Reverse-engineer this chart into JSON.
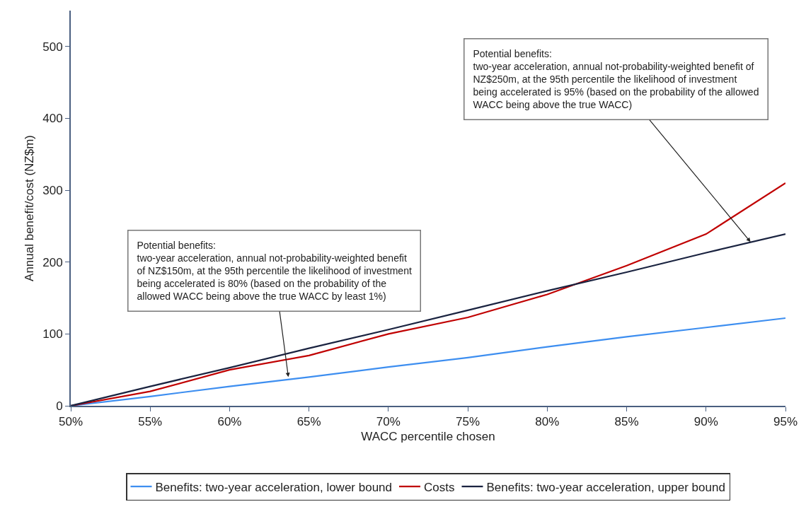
{
  "chart_data": {
    "type": "line",
    "xlabel": "WACC percentile chosen",
    "ylabel": "Annual benefit/cost (NZ$m)",
    "x": [
      50,
      55,
      60,
      65,
      70,
      75,
      80,
      85,
      90,
      95
    ],
    "series": [
      {
        "name": "Benefits: two-year acceleration, lower bound",
        "color": "#3d8ef0",
        "values": [
          0,
          13,
          27,
          40,
          54,
          67,
          82,
          96,
          109,
          122
        ]
      },
      {
        "name": "Costs",
        "color": "#c00000",
        "values": [
          0,
          20,
          50,
          70,
          100,
          123,
          155,
          195,
          239,
          310
        ]
      },
      {
        "name": "Benefits: two-year acceleration, upper bound",
        "color": "#1a2340",
        "values": [
          0,
          27,
          53,
          80,
          106,
          133,
          160,
          186,
          213,
          239
        ]
      }
    ],
    "xlim": [
      50,
      95
    ],
    "ylim": [
      0,
      550
    ],
    "xticks": [
      {
        "value": 50,
        "label": "50%"
      },
      {
        "value": 55,
        "label": "55%"
      },
      {
        "value": 60,
        "label": "60%"
      },
      {
        "value": 65,
        "label": "65%"
      },
      {
        "value": 70,
        "label": "70%"
      },
      {
        "value": 75,
        "label": "75%"
      },
      {
        "value": 80,
        "label": "80%"
      },
      {
        "value": 85,
        "label": "85%"
      },
      {
        "value": 90,
        "label": "90%"
      },
      {
        "value": 95,
        "label": "95%"
      }
    ],
    "yticks": [
      0,
      100,
      200,
      300,
      400,
      500
    ],
    "annotations": [
      {
        "text": "Potential benefits:\ntwo-year acceleration, annual not-probability-weighted benefit\nof NZ$150m, at the 95th percentile the likelihood of investment\nbeing accelerated is 80% (based on the probability of the\nallowed WACC being above the true WACC by least 1%)",
        "x": 63.7,
        "y": 40
      },
      {
        "text": "Potential benefits:\ntwo-year acceleration, annual not-probability-weighted benefit of\nNZ$250m, at the 95th percentile the likelihood of investment\nbeing accelerated is 95% (based on the probability of the allowed\nWACC being above the true WACC)",
        "x": 92.8,
        "y": 228
      }
    ],
    "legend": "bottom",
    "marker": "none",
    "line_style": "solid"
  }
}
